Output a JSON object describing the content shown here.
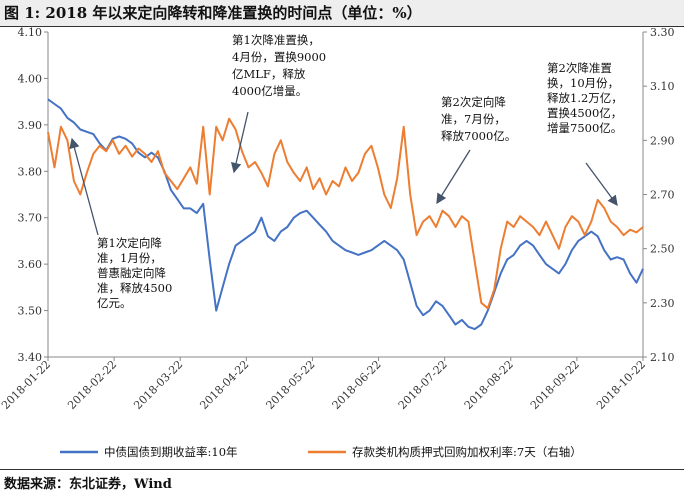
{
  "title": "图 1: 2018 年以来定向降转和降准置换的时间点（单位：%）",
  "source": "数据来源：东北证券，Wind",
  "colors": {
    "series1": "#4472C4",
    "series2": "#ED7D31",
    "arrow": "#44546A",
    "axis": "#888888"
  },
  "chart_data": {
    "type": "line",
    "title": "2018 年以来定向降转和降准置换的时间点（单位：%）",
    "x_ticks": [
      "2018-01-22",
      "2018-02-22",
      "2018-03-22",
      "2018-04-22",
      "2018-05-22",
      "2018-06-22",
      "2018-07-22",
      "2018-08-22",
      "2018-09-22",
      "2018-10-22"
    ],
    "x_range": [
      0,
      276
    ],
    "y_left": {
      "ylim": [
        3.4,
        4.1
      ],
      "ticks": [
        "3.40",
        "3.50",
        "3.60",
        "3.70",
        "3.80",
        "3.90",
        "4.00",
        "4.10"
      ]
    },
    "y_right": {
      "ylim": [
        2.1,
        3.3
      ],
      "ticks": [
        "2.10",
        "2.30",
        "2.50",
        "2.70",
        "2.90",
        "3.10",
        "3.30"
      ]
    },
    "series": [
      {
        "name": "中债国债到期收益率:10年",
        "axis": "left",
        "x": [
          0,
          3,
          6,
          9,
          12,
          15,
          18,
          21,
          24,
          27,
          30,
          33,
          36,
          39,
          42,
          45,
          48,
          51,
          54,
          57,
          60,
          63,
          66,
          69,
          72,
          75,
          78,
          81,
          84,
          87,
          90,
          93,
          96,
          99,
          102,
          105,
          108,
          111,
          114,
          117,
          120,
          123,
          126,
          129,
          132,
          135,
          138,
          141,
          144,
          147,
          150,
          153,
          156,
          159,
          162,
          165,
          168,
          171,
          174,
          177,
          180,
          183,
          186,
          189,
          192,
          195,
          198,
          201,
          204,
          207,
          210,
          213,
          216,
          219,
          222,
          225,
          228,
          231,
          234,
          237,
          240,
          243,
          246,
          249,
          252,
          255,
          258,
          261,
          264,
          267,
          270,
          273,
          276
        ],
        "values": [
          3.955,
          3.945,
          3.935,
          3.915,
          3.905,
          3.89,
          3.885,
          3.88,
          3.86,
          3.845,
          3.87,
          3.875,
          3.87,
          3.86,
          3.84,
          3.83,
          3.84,
          3.83,
          3.8,
          3.76,
          3.74,
          3.72,
          3.72,
          3.71,
          3.73,
          3.61,
          3.5,
          3.55,
          3.6,
          3.64,
          3.65,
          3.66,
          3.67,
          3.7,
          3.66,
          3.65,
          3.67,
          3.68,
          3.7,
          3.71,
          3.715,
          3.7,
          3.685,
          3.67,
          3.65,
          3.64,
          3.63,
          3.625,
          3.62,
          3.625,
          3.63,
          3.64,
          3.65,
          3.64,
          3.63,
          3.61,
          3.56,
          3.51,
          3.49,
          3.5,
          3.52,
          3.51,
          3.49,
          3.47,
          3.48,
          3.465,
          3.46,
          3.47,
          3.5,
          3.54,
          3.58,
          3.61,
          3.62,
          3.64,
          3.65,
          3.64,
          3.62,
          3.6,
          3.59,
          3.58,
          3.6,
          3.63,
          3.65,
          3.66,
          3.67,
          3.66,
          3.63,
          3.61,
          3.615,
          3.61,
          3.58,
          3.56,
          3.59
        ]
      },
      {
        "name": "存款类机构质押式回购加权利率:7天（右轴）",
        "axis": "right",
        "x": [
          0,
          3,
          6,
          9,
          12,
          15,
          18,
          21,
          24,
          27,
          30,
          33,
          36,
          39,
          42,
          45,
          48,
          51,
          54,
          57,
          60,
          63,
          66,
          69,
          72,
          75,
          78,
          81,
          84,
          87,
          90,
          93,
          96,
          99,
          102,
          105,
          108,
          111,
          114,
          117,
          120,
          123,
          126,
          129,
          132,
          135,
          138,
          141,
          144,
          147,
          150,
          153,
          156,
          159,
          162,
          165,
          168,
          171,
          174,
          177,
          180,
          183,
          186,
          189,
          192,
          195,
          198,
          201,
          204,
          207,
          210,
          213,
          216,
          219,
          222,
          225,
          228,
          231,
          234,
          237,
          240,
          243,
          246,
          249,
          252,
          255,
          258,
          261,
          264,
          267,
          270,
          273,
          276
        ],
        "values": [
          2.93,
          2.8,
          2.95,
          2.9,
          2.75,
          2.7,
          2.78,
          2.85,
          2.88,
          2.86,
          2.9,
          2.85,
          2.88,
          2.84,
          2.87,
          2.85,
          2.82,
          2.86,
          2.78,
          2.75,
          2.72,
          2.76,
          2.8,
          2.74,
          2.95,
          2.7,
          2.95,
          2.9,
          2.98,
          2.94,
          2.86,
          2.8,
          2.82,
          2.78,
          2.73,
          2.85,
          2.9,
          2.82,
          2.78,
          2.75,
          2.8,
          2.72,
          2.76,
          2.7,
          2.75,
          2.73,
          2.8,
          2.75,
          2.78,
          2.85,
          2.88,
          2.8,
          2.7,
          2.65,
          2.76,
          2.95,
          2.7,
          2.55,
          2.6,
          2.62,
          2.58,
          2.64,
          2.62,
          2.58,
          2.62,
          2.6,
          2.45,
          2.3,
          2.28,
          2.35,
          2.5,
          2.6,
          2.58,
          2.62,
          2.6,
          2.58,
          2.55,
          2.6,
          2.55,
          2.5,
          2.58,
          2.62,
          2.6,
          2.55,
          2.6,
          2.68,
          2.65,
          2.6,
          2.58,
          2.55,
          2.57,
          2.56,
          2.58
        ]
      }
    ],
    "annotations": [
      {
        "lines": [
          "第1次降准置换，",
          "4月份，置换9000",
          "亿MLF，释放",
          "4000亿增量。"
        ]
      },
      {
        "lines": [
          "第2次定向降",
          "准，7月份，",
          "释放7000亿。"
        ]
      },
      {
        "lines": [
          "第2次降准置",
          "换，10月份，",
          "释放1.2万亿，",
          "置换4500亿，",
          "增量7500亿。"
        ]
      },
      {
        "lines": [
          "第1次定向降",
          "准，1月份，",
          "普惠融定向降",
          "准，释放4500",
          "亿元。"
        ]
      }
    ],
    "legend": [
      "中债国债到期收益率:10年",
      "存款类机构质押式回购加权利率:7天（右轴）"
    ]
  }
}
